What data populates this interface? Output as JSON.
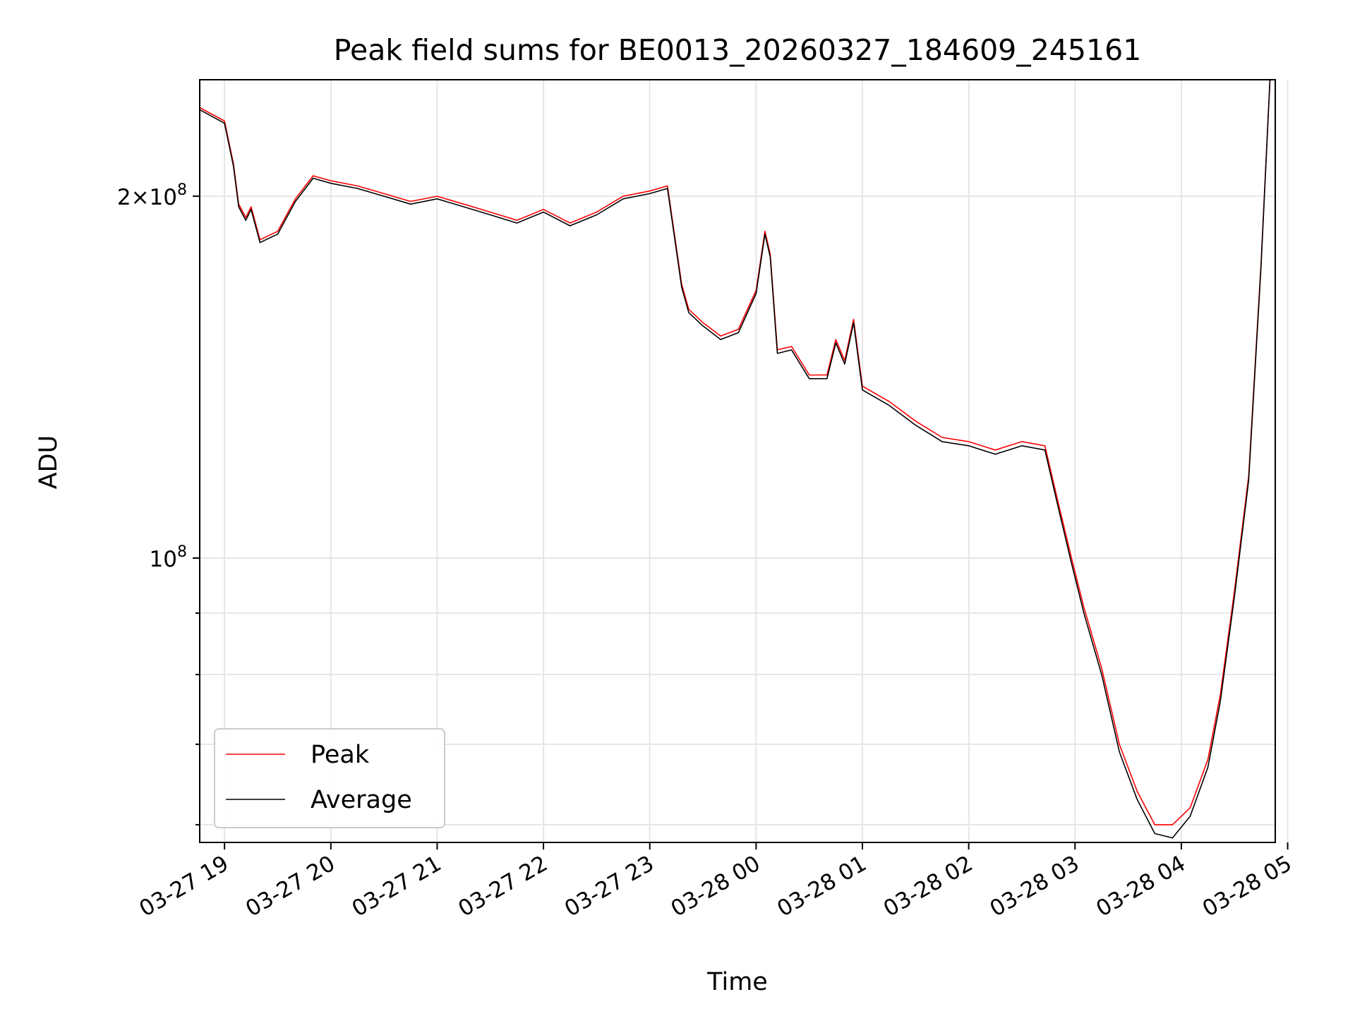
{
  "chart_data": {
    "type": "line",
    "title": "Peak field sums for BE0013_20260327_184609_245161",
    "xlabel": "Time",
    "ylabel": "ADU",
    "x_ticks": [
      "03-27 19",
      "03-27 20",
      "03-27 21",
      "03-27 22",
      "03-27 23",
      "03-28 00",
      "03-28 01",
      "03-28 02",
      "03-28 03",
      "03-28 04",
      "03-28 05"
    ],
    "y_ticks": [
      {
        "value": 200000000,
        "label_base": "2×10",
        "label_exp": "8"
      },
      {
        "value": 100000000,
        "label_base": "10",
        "label_exp": "8"
      }
    ],
    "y_scale": "log",
    "ylim": [
      58000000,
      250000000
    ],
    "xlim": [
      "03-27 18:46",
      "03-28 04:53"
    ],
    "grid": true,
    "legend_position": "lower-left",
    "colors": {
      "Peak": "#ff0000",
      "Average": "#000000"
    },
    "x": [
      "03-27 18:46",
      "03-27 19:00",
      "03-27 19:05",
      "03-27 19:08",
      "03-27 19:12",
      "03-27 19:15",
      "03-27 19:20",
      "03-27 19:30",
      "03-27 19:40",
      "03-27 19:50",
      "03-27 20:00",
      "03-27 20:15",
      "03-27 20:30",
      "03-27 20:45",
      "03-27 21:00",
      "03-27 21:15",
      "03-27 21:30",
      "03-27 21:45",
      "03-27 22:00",
      "03-27 22:15",
      "03-27 22:30",
      "03-27 22:45",
      "03-27 23:00",
      "03-27 23:10",
      "03-27 23:18",
      "03-27 23:22",
      "03-27 23:30",
      "03-27 23:40",
      "03-27 23:50",
      "03-28 00:00",
      "03-28 00:05",
      "03-28 00:08",
      "03-28 00:12",
      "03-28 00:20",
      "03-28 00:30",
      "03-28 00:40",
      "03-28 00:45",
      "03-28 00:50",
      "03-28 00:55",
      "03-28 01:00",
      "03-28 01:15",
      "03-28 01:30",
      "03-28 01:45",
      "03-28 02:00",
      "03-28 02:15",
      "03-28 02:30",
      "03-28 02:43",
      "03-28 02:50",
      "03-28 02:58",
      "03-28 03:05",
      "03-28 03:15",
      "03-28 03:25",
      "03-28 03:35",
      "03-28 03:45",
      "03-28 03:55",
      "03-28 04:05",
      "03-28 04:15",
      "03-28 04:22",
      "03-28 04:30",
      "03-28 04:38",
      "03-28 04:45",
      "03-28 04:50"
    ],
    "series": [
      {
        "name": "Average",
        "values": [
          236000000,
          230000000,
          212000000,
          196000000,
          191000000,
          195000000,
          183000000,
          186000000,
          198000000,
          207000000,
          205000000,
          203000000,
          200000000,
          197000000,
          199000000,
          196000000,
          193000000,
          190000000,
          194000000,
          189000000,
          193000000,
          199000000,
          201000000,
          203000000,
          168000000,
          160000000,
          156000000,
          152000000,
          154000000,
          166000000,
          186000000,
          178000000,
          148000000,
          149000000,
          141000000,
          141000000,
          151000000,
          145000000,
          157000000,
          138000000,
          134000000,
          129000000,
          125000000,
          124000000,
          122000000,
          124000000,
          123000000,
          111000000,
          99000000,
          90000000,
          80000000,
          69000000,
          63000000,
          59000000,
          58500000,
          61000000,
          67000000,
          76000000,
          93000000,
          116000000,
          175000000,
          250000000
        ]
      },
      {
        "name": "Peak",
        "values": [
          237000000,
          231000000,
          213000000,
          197000000,
          192000000,
          196000000,
          184000000,
          187000000,
          199000000,
          208000000,
          206000000,
          204000000,
          201000000,
          198000000,
          200000000,
          197000000,
          194000000,
          191000000,
          195000000,
          190000000,
          194000000,
          200000000,
          202000000,
          204000000,
          169000000,
          161000000,
          157000000,
          153000000,
          155000000,
          167000000,
          187000000,
          179000000,
          149000000,
          150000000,
          142000000,
          142000000,
          152000000,
          146000000,
          158000000,
          139000000,
          135000000,
          130000000,
          126000000,
          125000000,
          123000000,
          125000000,
          124000000,
          112000000,
          100000000,
          91000000,
          81000000,
          70000000,
          64000000,
          60000000,
          60000000,
          62000000,
          68000000,
          77000000,
          94000000,
          117000000,
          176000000,
          250000000
        ]
      }
    ]
  }
}
